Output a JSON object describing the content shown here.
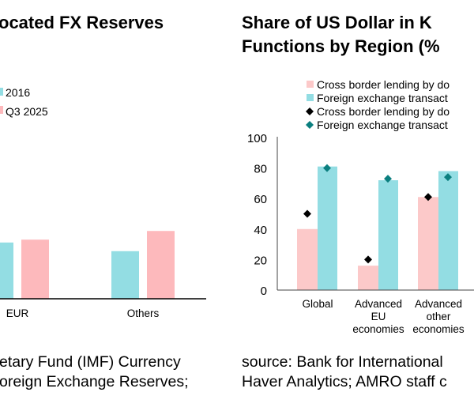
{
  "colors": {
    "pink": "#fcc9c9",
    "cyan": "#93dde3",
    "pink2": "#fdb9bc",
    "teal": "#0b7f7f",
    "black": "#000000"
  },
  "left_source": [
    "etary Fund (IMF) Currency",
    "oreign Exchange Reserves;"
  ],
  "right_source": [
    "source: Bank for International",
    "Haver Analytics; AMRO staff c"
  ],
  "chart_data": [
    {
      "type": "bar",
      "title": "ocated FX Reserves",
      "legend": [
        "2016",
        "Q3 2025"
      ],
      "categories": [
        "EUR",
        "Others"
      ],
      "series": [
        {
          "name": "2016",
          "values": [
            19.5,
            16.5
          ]
        },
        {
          "name": "Q3 2025",
          "values": [
            20.5,
            23.5
          ]
        }
      ]
    },
    {
      "type": "bar",
      "title": [
        "Share of US Dollar in K",
        "Functions by Region (%"
      ],
      "legend": [
        "Cross border lending by do",
        "Foreign exchange transact",
        "Cross border lending by do",
        "Foreign exchange transact"
      ],
      "categories": [
        [
          "Global"
        ],
        [
          "Advanced",
          "EU",
          "economies"
        ],
        [
          "Advanced",
          "other",
          "economies"
        ]
      ],
      "ylim": [
        0,
        100
      ],
      "yticks": [
        "0",
        "20",
        "40",
        "60",
        "80",
        "100"
      ],
      "series": [
        {
          "name": "Cross border lending by do (bar)",
          "kind": "bar",
          "values": [
            40,
            16,
            61
          ]
        },
        {
          "name": "Foreign exchange transact (bar)",
          "kind": "bar",
          "values": [
            81,
            72,
            78
          ]
        },
        {
          "name": "Cross border lending by do (marker)",
          "kind": "diamond",
          "values": [
            50,
            20,
            61
          ]
        },
        {
          "name": "Foreign exchange transact (marker)",
          "kind": "diamond",
          "values": [
            80,
            73,
            74
          ]
        }
      ]
    }
  ]
}
